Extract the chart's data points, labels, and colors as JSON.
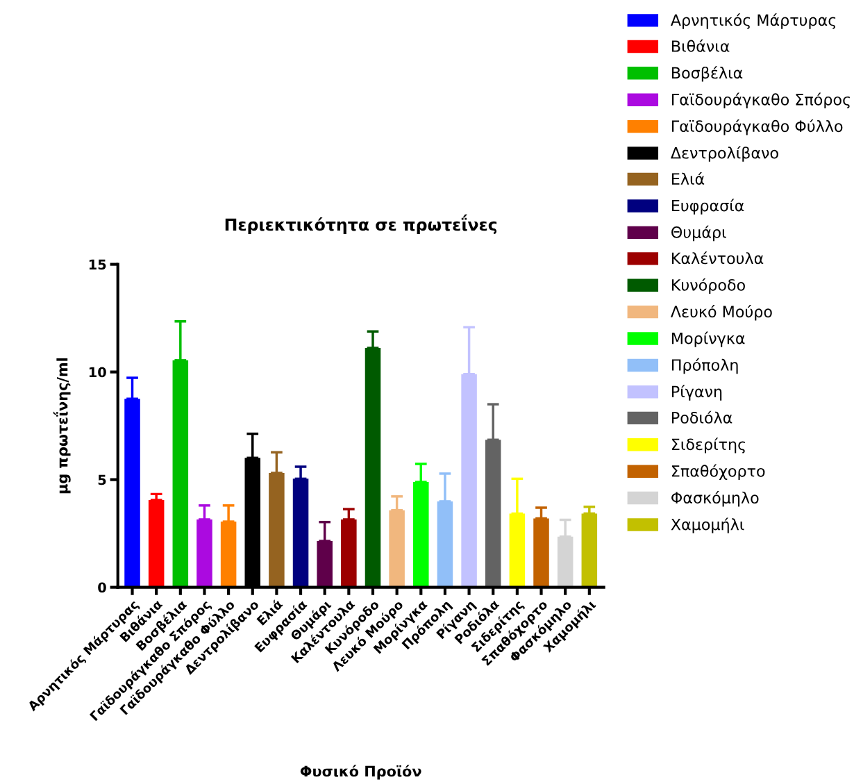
{
  "chart_data": {
    "type": "bar",
    "title": "Περιεκτικότητα σε πρωτεΐνες",
    "xlabel": "Φυσικό Προϊόν",
    "ylabel": "μg πρωτεΐνης/ml",
    "categories": [
      "Αρνητικός Μάρτυρας",
      "Βιθάνια",
      "Βοσβέλια",
      "Γαϊδουράγκαθο Σπόρος",
      "Γαϊδουράγκαθο Φύλλο",
      "Δεντρολίβανο",
      "Ελιά",
      "Ευφρασία",
      "Θυμάρι",
      "Καλέντουλα",
      "Κυνόροδο",
      "Λευκό Μούρο",
      "Μορίνγκα",
      "Πρόπολη",
      "Ρίγανη",
      "Ροδιόλα",
      "Σιδερίτης",
      "Σπαθόχορτο",
      "Φασκόμηλο",
      "Χαμομήλι"
    ],
    "stacked": true,
    "series": [
      {
        "name": "Αρνητικός Μάρτυρας",
        "color": "#0000ff",
        "values": [
          8.75,
          null,
          null,
          null,
          null,
          null,
          null,
          null,
          null,
          null,
          null,
          null,
          null,
          null,
          null,
          null,
          null,
          null,
          null,
          null
        ],
        "errors": [
          [
            8.75,
            9.73
          ],
          null,
          null,
          null,
          null,
          null,
          null,
          null,
          null,
          null,
          null,
          null,
          null,
          null,
          null,
          null,
          null,
          null,
          null,
          null
        ]
      },
      {
        "name": "Βιθάνια",
        "color": "#ff0000",
        "values": [
          null,
          4.05,
          null,
          null,
          null,
          null,
          null,
          null,
          null,
          null,
          null,
          null,
          null,
          null,
          null,
          null,
          null,
          null,
          null,
          null
        ],
        "errors": [
          null,
          [
            4.05,
            4.33
          ],
          null,
          null,
          null,
          null,
          null,
          null,
          null,
          null,
          null,
          null,
          null,
          null,
          null,
          null,
          null,
          null,
          null,
          null
        ]
      },
      {
        "name": "Βοσβέλια",
        "color": "#00bf00",
        "values": [
          null,
          null,
          10.54,
          null,
          null,
          null,
          null,
          null,
          null,
          null,
          null,
          null,
          null,
          null,
          null,
          null,
          null,
          null,
          null,
          null
        ],
        "errors": [
          null,
          null,
          [
            10.54,
            12.35
          ],
          null,
          null,
          null,
          null,
          null,
          null,
          null,
          null,
          null,
          null,
          null,
          null,
          null,
          null,
          null,
          null,
          null
        ]
      },
      {
        "name": "Γαϊδουράγκαθο Σπόρος",
        "color": "#ab0ae0",
        "values": [
          null,
          null,
          null,
          3.15,
          null,
          null,
          null,
          null,
          null,
          null,
          null,
          null,
          null,
          null,
          null,
          null,
          null,
          null,
          null,
          null
        ],
        "errors": [
          null,
          null,
          null,
          [
            3.15,
            3.8
          ],
          null,
          null,
          null,
          null,
          null,
          null,
          null,
          null,
          null,
          null,
          null,
          null,
          null,
          null,
          null,
          null
        ]
      },
      {
        "name": "Γαϊδουράγκαθο Φύλλο",
        "color": "#ff8000",
        "values": [
          null,
          null,
          null,
          null,
          3.05,
          null,
          null,
          null,
          null,
          null,
          null,
          null,
          null,
          null,
          null,
          null,
          null,
          null,
          null,
          null
        ],
        "errors": [
          null,
          null,
          null,
          null,
          [
            3.05,
            3.8
          ],
          null,
          null,
          null,
          null,
          null,
          null,
          null,
          null,
          null,
          null,
          null,
          null,
          null,
          null,
          null
        ]
      },
      {
        "name": "Δεντρολίβανο",
        "color": "#000000",
        "values": [
          null,
          null,
          null,
          null,
          null,
          6.01,
          null,
          null,
          null,
          null,
          null,
          null,
          null,
          null,
          null,
          null,
          null,
          null,
          null,
          null
        ],
        "errors": [
          null,
          null,
          null,
          null,
          null,
          [
            6.01,
            7.13
          ],
          null,
          null,
          null,
          null,
          null,
          null,
          null,
          null,
          null,
          null,
          null,
          null,
          null,
          null
        ]
      },
      {
        "name": "Ελιά",
        "color": "#956320",
        "values": [
          null,
          null,
          null,
          null,
          null,
          null,
          5.31,
          null,
          null,
          null,
          null,
          null,
          null,
          null,
          null,
          null,
          null,
          null,
          null,
          null
        ],
        "errors": [
          null,
          null,
          null,
          null,
          null,
          null,
          [
            5.31,
            6.27
          ],
          null,
          null,
          null,
          null,
          null,
          null,
          null,
          null,
          null,
          null,
          null,
          null,
          null
        ]
      },
      {
        "name": "Ευφρασία",
        "color": "#00007f",
        "values": [
          null,
          null,
          null,
          null,
          null,
          null,
          null,
          5.04,
          null,
          null,
          null,
          null,
          null,
          null,
          null,
          null,
          null,
          null,
          null,
          null
        ],
        "errors": [
          null,
          null,
          null,
          null,
          null,
          null,
          null,
          [
            5.04,
            5.6
          ],
          null,
          null,
          null,
          null,
          null,
          null,
          null,
          null,
          null,
          null,
          null,
          null
        ]
      },
      {
        "name": "Θυμάρι",
        "color": "#5f004a",
        "values": [
          null,
          null,
          null,
          null,
          null,
          null,
          null,
          null,
          2.15,
          null,
          null,
          null,
          null,
          null,
          null,
          null,
          null,
          null,
          null,
          null
        ],
        "errors": [
          null,
          null,
          null,
          null,
          null,
          null,
          null,
          null,
          [
            2.15,
            3.03
          ],
          null,
          null,
          null,
          null,
          null,
          null,
          null,
          null,
          null,
          null,
          null
        ]
      },
      {
        "name": "Καλέντουλα",
        "color": "#9c0000",
        "values": [
          null,
          null,
          null,
          null,
          null,
          null,
          null,
          null,
          null,
          3.15,
          null,
          null,
          null,
          null,
          null,
          null,
          null,
          null,
          null,
          null
        ],
        "errors": [
          null,
          null,
          null,
          null,
          null,
          null,
          null,
          null,
          null,
          [
            3.15,
            3.63
          ],
          null,
          null,
          null,
          null,
          null,
          null,
          null,
          null,
          null,
          null
        ]
      },
      {
        "name": "Κυνόροδο",
        "color": "#005a00",
        "values": [
          null,
          null,
          null,
          null,
          null,
          null,
          null,
          null,
          null,
          null,
          11.12,
          null,
          null,
          null,
          null,
          null,
          null,
          null,
          null,
          null
        ],
        "errors": [
          null,
          null,
          null,
          null,
          null,
          null,
          null,
          null,
          null,
          null,
          [
            11.12,
            11.88
          ],
          null,
          null,
          null,
          null,
          null,
          null,
          null,
          null,
          null
        ]
      },
      {
        "name": "Λευκό Μούρο",
        "color": "#f1b77e",
        "values": [
          null,
          null,
          null,
          null,
          null,
          null,
          null,
          null,
          null,
          null,
          null,
          3.58,
          null,
          null,
          null,
          null,
          null,
          null,
          null,
          null
        ],
        "errors": [
          null,
          null,
          null,
          null,
          null,
          null,
          null,
          null,
          null,
          null,
          null,
          [
            3.58,
            4.22
          ],
          null,
          null,
          null,
          null,
          null,
          null,
          null,
          null
        ]
      },
      {
        "name": "Μορίνγκα",
        "color": "#00ff00",
        "values": [
          null,
          null,
          null,
          null,
          null,
          null,
          null,
          null,
          null,
          null,
          null,
          null,
          4.89,
          null,
          null,
          null,
          null,
          null,
          null,
          null
        ],
        "errors": [
          null,
          null,
          null,
          null,
          null,
          null,
          null,
          null,
          null,
          null,
          null,
          null,
          [
            4.89,
            5.73
          ],
          null,
          null,
          null,
          null,
          null,
          null,
          null
        ]
      },
      {
        "name": "Πρόπολη",
        "color": "#91bff8",
        "values": [
          null,
          null,
          null,
          null,
          null,
          null,
          null,
          null,
          null,
          null,
          null,
          null,
          null,
          3.99,
          null,
          null,
          null,
          null,
          null,
          null
        ],
        "errors": [
          null,
          null,
          null,
          null,
          null,
          null,
          null,
          null,
          null,
          null,
          null,
          null,
          null,
          [
            3.99,
            5.28
          ],
          null,
          null,
          null,
          null,
          null,
          null
        ]
      },
      {
        "name": "Ρίγανη",
        "color": "#c2c2ff",
        "values": [
          null,
          null,
          null,
          null,
          null,
          null,
          null,
          null,
          null,
          null,
          null,
          null,
          null,
          null,
          9.9,
          null,
          null,
          null,
          null,
          null
        ],
        "errors": [
          null,
          null,
          null,
          null,
          null,
          null,
          null,
          null,
          null,
          null,
          null,
          null,
          null,
          null,
          [
            9.9,
            12.08
          ],
          null,
          null,
          null,
          null,
          null
        ]
      },
      {
        "name": "Ροδιόλα",
        "color": "#636363",
        "values": [
          null,
          null,
          null,
          null,
          null,
          null,
          null,
          null,
          null,
          null,
          null,
          null,
          null,
          null,
          null,
          6.85,
          null,
          null,
          null,
          null
        ],
        "errors": [
          null,
          null,
          null,
          null,
          null,
          null,
          null,
          null,
          null,
          null,
          null,
          null,
          null,
          null,
          null,
          [
            6.85,
            8.5
          ],
          null,
          null,
          null,
          null
        ]
      },
      {
        "name": "Σιδερίτης",
        "color": "#ffff00",
        "values": [
          null,
          null,
          null,
          null,
          null,
          null,
          null,
          null,
          null,
          null,
          null,
          null,
          null,
          null,
          null,
          null,
          3.42,
          null,
          null,
          null
        ],
        "errors": [
          null,
          null,
          null,
          null,
          null,
          null,
          null,
          null,
          null,
          null,
          null,
          null,
          null,
          null,
          null,
          null,
          [
            3.42,
            5.04
          ],
          null,
          null,
          null
        ]
      },
      {
        "name": "Σπαθόχορτο",
        "color": "#c26200",
        "values": [
          null,
          null,
          null,
          null,
          null,
          null,
          null,
          null,
          null,
          null,
          null,
          null,
          null,
          null,
          null,
          null,
          null,
          3.2,
          null,
          null
        ],
        "errors": [
          null,
          null,
          null,
          null,
          null,
          null,
          null,
          null,
          null,
          null,
          null,
          null,
          null,
          null,
          null,
          null,
          null,
          [
            3.2,
            3.7
          ],
          null,
          null
        ]
      },
      {
        "name": "Φασκόμηλο",
        "color": "#d4d4d4",
        "values": [
          null,
          null,
          null,
          null,
          null,
          null,
          null,
          null,
          null,
          null,
          null,
          null,
          null,
          null,
          null,
          null,
          null,
          null,
          2.35,
          null
        ],
        "errors": [
          null,
          null,
          null,
          null,
          null,
          null,
          null,
          null,
          null,
          null,
          null,
          null,
          null,
          null,
          null,
          null,
          null,
          null,
          [
            2.35,
            3.13
          ],
          null
        ]
      },
      {
        "name": "Χαμομήλι",
        "color": "#c2c000",
        "values": [
          null,
          null,
          null,
          null,
          null,
          null,
          null,
          null,
          null,
          null,
          null,
          null,
          null,
          null,
          null,
          null,
          null,
          null,
          null,
          3.42
        ],
        "errors": [
          null,
          null,
          null,
          null,
          null,
          null,
          null,
          null,
          null,
          null,
          null,
          null,
          null,
          null,
          null,
          null,
          null,
          null,
          null,
          [
            3.42,
            3.74
          ]
        ]
      }
    ],
    "ylim": [
      0,
      15
    ],
    "yticks": [
      0,
      5,
      10,
      15
    ],
    "grid": false,
    "legend": "top right"
  }
}
